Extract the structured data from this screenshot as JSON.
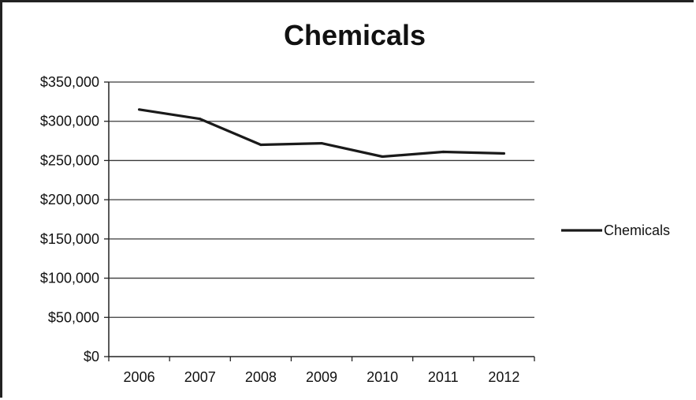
{
  "chart_data": {
    "type": "line",
    "title": "Chemicals",
    "xlabel": "",
    "ylabel": "",
    "categories": [
      "2006",
      "2007",
      "2008",
      "2009",
      "2010",
      "2011",
      "2012"
    ],
    "series": [
      {
        "name": "Chemicals",
        "values": [
          315000,
          303000,
          270000,
          272000,
          255000,
          261000,
          259000
        ],
        "color": "#1a1a1a"
      }
    ],
    "y_ticks": [
      "$0",
      "$50,000",
      "$100,000",
      "$150,000",
      "$200,000",
      "$250,000",
      "$300,000",
      "$350,000"
    ],
    "ylim": [
      0,
      350000
    ],
    "grid": true,
    "legend": "right"
  }
}
